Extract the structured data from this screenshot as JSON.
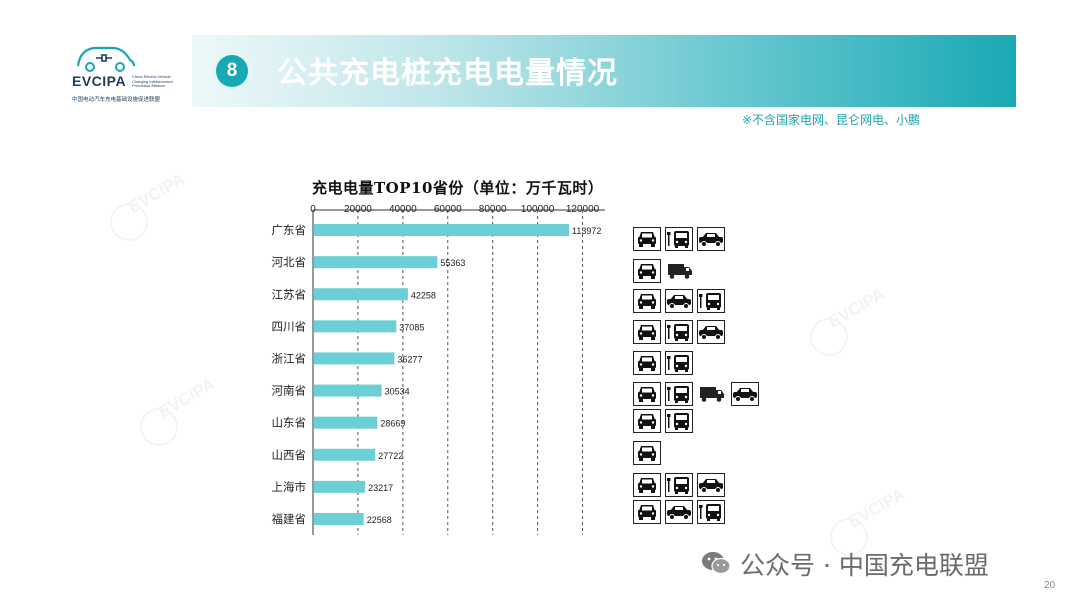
{
  "logo": {
    "brand": "EVCIPA",
    "english": "China Electric Vehicle Charging Infrastructure Promotion Alliance",
    "chinese": "中国电动汽车充电基础设施促进联盟"
  },
  "header": {
    "badge_number": "8",
    "title": "公共充电桩充电电量情况",
    "note": "※不含国家电网、昆仑网电、小鹏"
  },
  "watermark": {
    "text": "EVCIPA"
  },
  "chart_data": {
    "type": "bar",
    "orientation": "horizontal",
    "title": "充电电量TOP10省份（单位：万千瓦时）",
    "categories": [
      "广东省",
      "河北省",
      "江苏省",
      "四川省",
      "浙江省",
      "河南省",
      "山东省",
      "山西省",
      "上海市",
      "福建省"
    ],
    "values": [
      113972,
      55363,
      42258,
      37085,
      36277,
      30534,
      28669,
      27722,
      23217,
      22568
    ],
    "value_labels": [
      "113972",
      "55363",
      "42258",
      "37085",
      "36277",
      "30534",
      "28669",
      "27722",
      "23217",
      "22568"
    ],
    "xlim": [
      0,
      130000
    ],
    "xticks": [
      0,
      20000,
      40000,
      60000,
      80000,
      100000,
      120000
    ],
    "xtick_labels": [
      "0",
      "20000",
      "40000",
      "60000",
      "80000",
      "100000",
      "120000"
    ],
    "axis_position": "top",
    "grid": "vertical dashed",
    "bar_color": "#6ccfd6"
  },
  "vehicle_icons": [
    [
      "car",
      "bus",
      "taxi"
    ],
    [
      "car",
      "truck"
    ],
    [
      "car",
      "taxi",
      "bus"
    ],
    [
      "car",
      "bus",
      "taxi"
    ],
    [
      "car",
      "bus"
    ],
    [
      "car",
      "bus",
      "truck",
      "taxi"
    ],
    [
      "car",
      "bus"
    ],
    [
      "car"
    ],
    [
      "car",
      "bus",
      "taxi"
    ],
    [
      "car",
      "taxi",
      "bus"
    ]
  ],
  "footer": {
    "text": "公众号 · 中国充电联盟",
    "page_number": "20"
  }
}
